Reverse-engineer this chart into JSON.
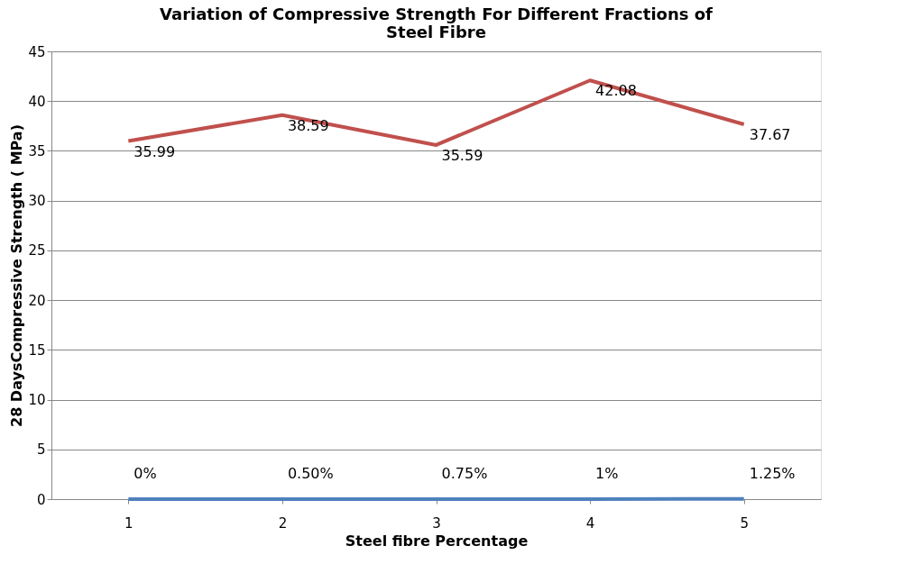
{
  "chart_data": {
    "type": "line",
    "title": "Variation of Compressive Strength For Different Fractions of Steel Fibre",
    "xlabel": "Steel fibre Percentage",
    "ylabel": "28 DaysCompressive Strength ( MPa)",
    "categories": [
      "1",
      "2",
      "3",
      "4",
      "5"
    ],
    "series": [
      {
        "color": "#4f81bd",
        "values": [
          0,
          0.005,
          0.0075,
          0.01,
          0.0125
        ],
        "value_labels": [
          "0%",
          "0.50%",
          "0.75%",
          "1%",
          "1.25%"
        ]
      },
      {
        "color": "#c0504d",
        "values": [
          35.99,
          38.59,
          35.59,
          42.08,
          37.67
        ],
        "value_labels": [
          "35.99",
          "38.59",
          "35.59",
          "42.08",
          "37.67"
        ]
      }
    ],
    "ylim": [
      0,
      45
    ],
    "yticks": [
      0,
      5,
      10,
      15,
      20,
      25,
      30,
      35,
      40,
      45
    ],
    "grid": "y",
    "marker": "none",
    "line_style": "solid"
  }
}
